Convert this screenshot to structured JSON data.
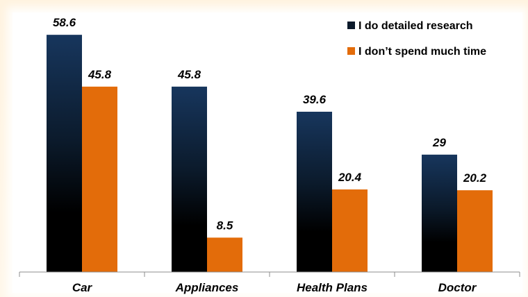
{
  "chart_data": {
    "type": "bar",
    "categories": [
      "Car",
      "Appliances",
      "Health Plans",
      "Doctor"
    ],
    "series": [
      {
        "name": "I do detailed research",
        "values": [
          58.6,
          45.8,
          39.6,
          29
        ],
        "value_labels": [
          "58.6",
          "45.8",
          "39.6",
          "29"
        ],
        "color": "#17365d"
      },
      {
        "name": "I don’t spend much time",
        "values": [
          45.8,
          8.5,
          20.4,
          20.2
        ],
        "value_labels": [
          "45.8",
          "8.5",
          "20.4",
          "20.2"
        ],
        "color": "#e36c0a"
      }
    ],
    "ylim": [
      0,
      60
    ],
    "grid": false,
    "legend": "top-right"
  }
}
